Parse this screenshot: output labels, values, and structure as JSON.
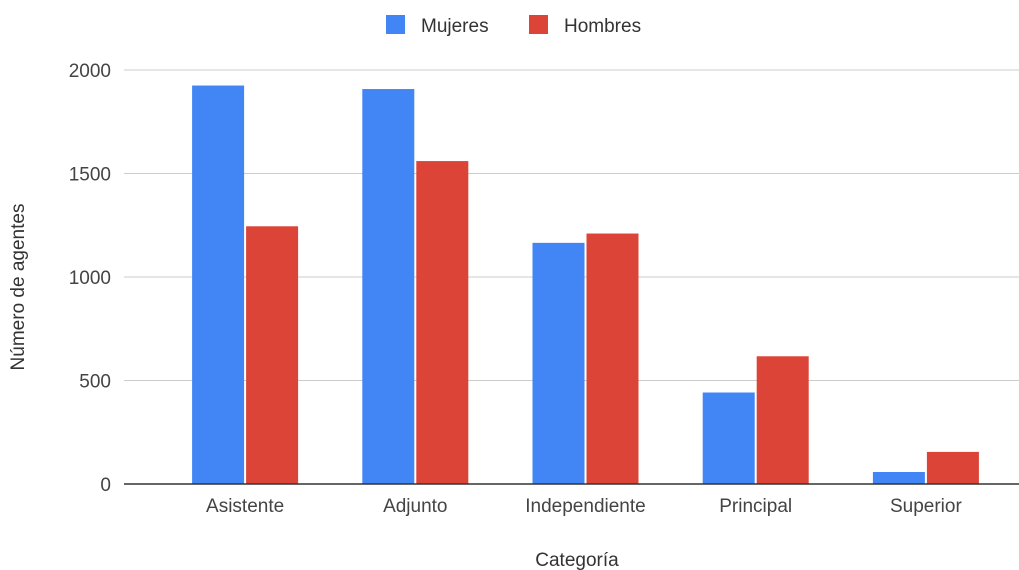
{
  "chart_data": {
    "type": "bar",
    "categories": [
      "Asistente",
      "Adjunto",
      "Independiente",
      "Principal",
      "Superior"
    ],
    "series": [
      {
        "name": "Mujeres",
        "color": "#4285f4",
        "values": [
          1925,
          1908,
          1165,
          442,
          58
        ]
      },
      {
        "name": "Hombres",
        "color": "#db4437",
        "values": [
          1245,
          1560,
          1210,
          617,
          155
        ]
      }
    ],
    "xlabel": "Categoría",
    "ylabel": "Número de agentes",
    "ylim": [
      0,
      2000
    ],
    "yticks": [
      0,
      500,
      1000,
      1500,
      2000
    ],
    "grid": true,
    "legend_position": "top-center"
  }
}
